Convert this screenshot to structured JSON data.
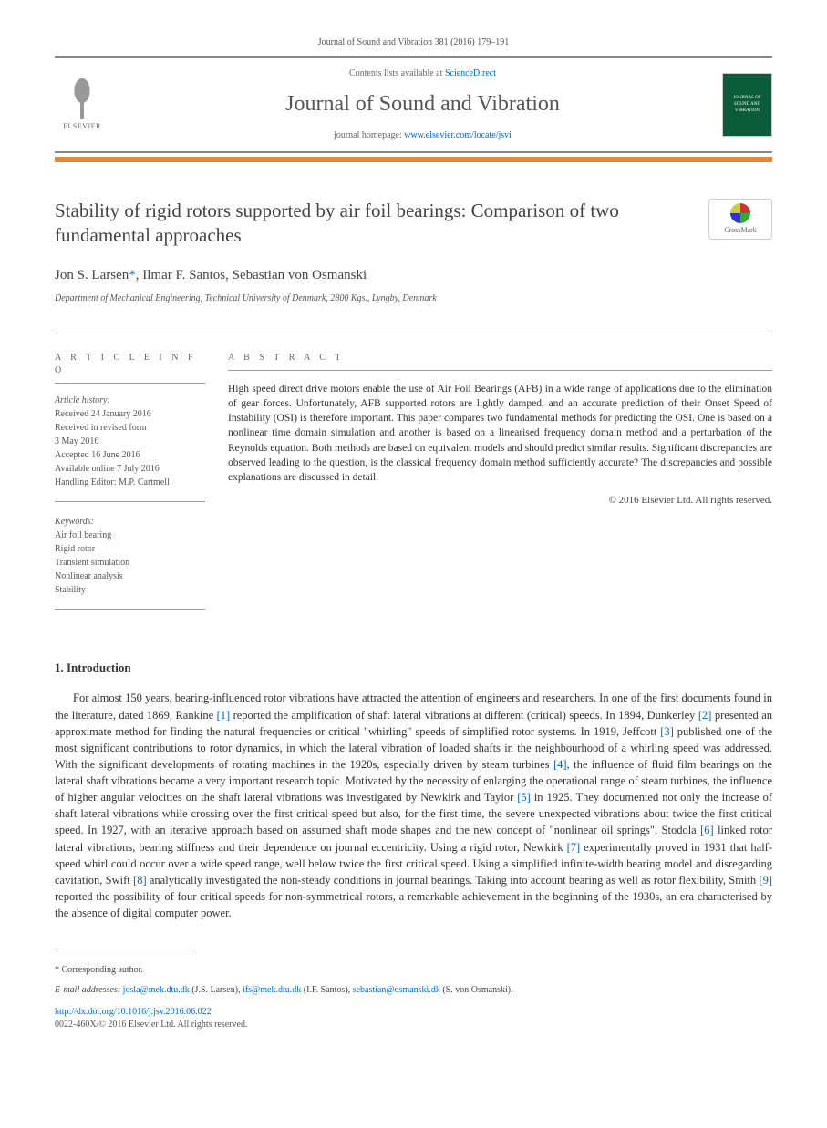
{
  "header": {
    "journal_ref": "Journal of Sound and Vibration 381 (2016) 179–191",
    "contents_prefix": "Contents lists available at ",
    "contents_link": "ScienceDirect",
    "journal_title": "Journal of Sound and Vibration",
    "homepage_prefix": "journal homepage: ",
    "homepage_url": "www.elsevier.com/locate/jsvi",
    "publisher": "ELSEVIER",
    "cover_text": "JOURNAL OF SOUND AND VIBRATION"
  },
  "article": {
    "title": "Stability of rigid rotors supported by air foil bearings: Comparison of two fundamental approaches",
    "crossmark": "CrossMark",
    "authors_html": "Jon S. Larsen",
    "author_sep1": ", ",
    "author2": "Ilmar F. Santos",
    "author_sep2": ", ",
    "author3": "Sebastian von Osmanski",
    "corr_mark": "*",
    "affiliation": "Department of Mechanical Engineering, Technical University of Denmark, 2800 Kgs., Lyngby, Denmark"
  },
  "info": {
    "heading": "A R T I C L E  I N F O",
    "history_label": "Article history:",
    "received": "Received 24 January 2016",
    "revised1": "Received in revised form",
    "revised2": "3 May 2016",
    "accepted": "Accepted 16 June 2016",
    "online": "Available online 7 July 2016",
    "editor": "Handling Editor: M.P. Cartmell",
    "keywords_label": "Keywords:",
    "kw1": "Air foil bearing",
    "kw2": "Rigid rotor",
    "kw3": "Transient simulation",
    "kw4": "Nonlinear analysis",
    "kw5": "Stability"
  },
  "abstract": {
    "heading": "A B S T R A C T",
    "text": "High speed direct drive motors enable the use of Air Foil Bearings (AFB) in a wide range of applications due to the elimination of gear forces. Unfortunately, AFB supported rotors are lightly damped, and an accurate prediction of their Onset Speed of Instability (OSI) is therefore important. This paper compares two fundamental methods for predicting the OSI. One is based on a nonlinear time domain simulation and another is based on a linearised frequency domain method and a perturbation of the Reynolds equation. Both methods are based on equivalent models and should predict similar results. Significant discrepancies are observed leading to the question, is the classical frequency domain method sufficiently accurate? The discrepancies and possible explanations are discussed in detail.",
    "copyright": "© 2016 Elsevier Ltd. All rights reserved."
  },
  "section1": {
    "heading": "1.  Introduction",
    "para": "For almost 150 years, bearing-influenced rotor vibrations have attracted the attention of engineers and researchers. In one of the first documents found in the literature, dated 1869, Rankine [1] reported the amplification of shaft lateral vibrations at different (critical) speeds. In 1894, Dunkerley [2] presented an approximate method for finding the natural frequencies or critical \"whirling\" speeds of simplified rotor systems. In 1919, Jeffcott [3] published one of the most significant contributions to rotor dynamics, in which the lateral vibration of loaded shafts in the neighbourhood of a whirling speed was addressed. With the significant developments of rotating machines in the 1920s, especially driven by steam turbines [4], the influence of fluid film bearings on the lateral shaft vibrations became a very important research topic. Motivated by the necessity of enlarging the operational range of steam turbines, the influence of higher angular velocities on the shaft lateral vibrations was investigated by Newkirk and Taylor [5] in 1925. They documented not only the increase of shaft lateral vibrations while crossing over the first critical speed but also, for the first time, the severe unexpected vibrations about twice the first critical speed. In 1927, with an iterative approach based on assumed shaft mode shapes and the new concept of \"nonlinear oil springs\", Stodola [6] linked rotor lateral vibrations, bearing stiffness and their dependence on journal eccentricity. Using a rigid rotor, Newkirk [7] experimentally proved in 1931 that half-speed whirl could occur over a wide speed range, well below twice the first critical speed. Using a simplified infinite-width bearing model and disregarding cavitation, Swift [8] analytically investigated the non-steady conditions in journal bearings. Taking into account bearing as well as rotor flexibility, Smith [9] reported the possibility of four critical speeds for non-symmetrical rotors, a remarkable achievement in the beginning of the 1930s, an era characterised by the absence of digital computer power."
  },
  "footer": {
    "corr": "* Corresponding author.",
    "email_label": "E-mail addresses: ",
    "email1": "josla@mek.dtu.dk",
    "email1_name": " (J.S. Larsen), ",
    "email2": "ifs@mek.dtu.dk",
    "email2_name": " (I.F. Santos), ",
    "email3": "sebastian@osmanski.dk",
    "email3_name": " (S. von Osmanski).",
    "doi": "http://dx.doi.org/10.1016/j.jsv.2016.06.022",
    "issn": "0022-460X/© 2016 Elsevier Ltd. All rights reserved."
  },
  "refs": {
    "r1": "[1]",
    "r2": "[2]",
    "r3": "[3]",
    "r4": "[4]",
    "r5": "[5]",
    "r6": "[6]",
    "r7": "[7]",
    "r8": "[8]",
    "r9": "[9]"
  },
  "colors": {
    "link": "#0066cc",
    "orange_bar": "#e6873c",
    "text": "#333333",
    "muted": "#555555",
    "border": "#999999"
  }
}
